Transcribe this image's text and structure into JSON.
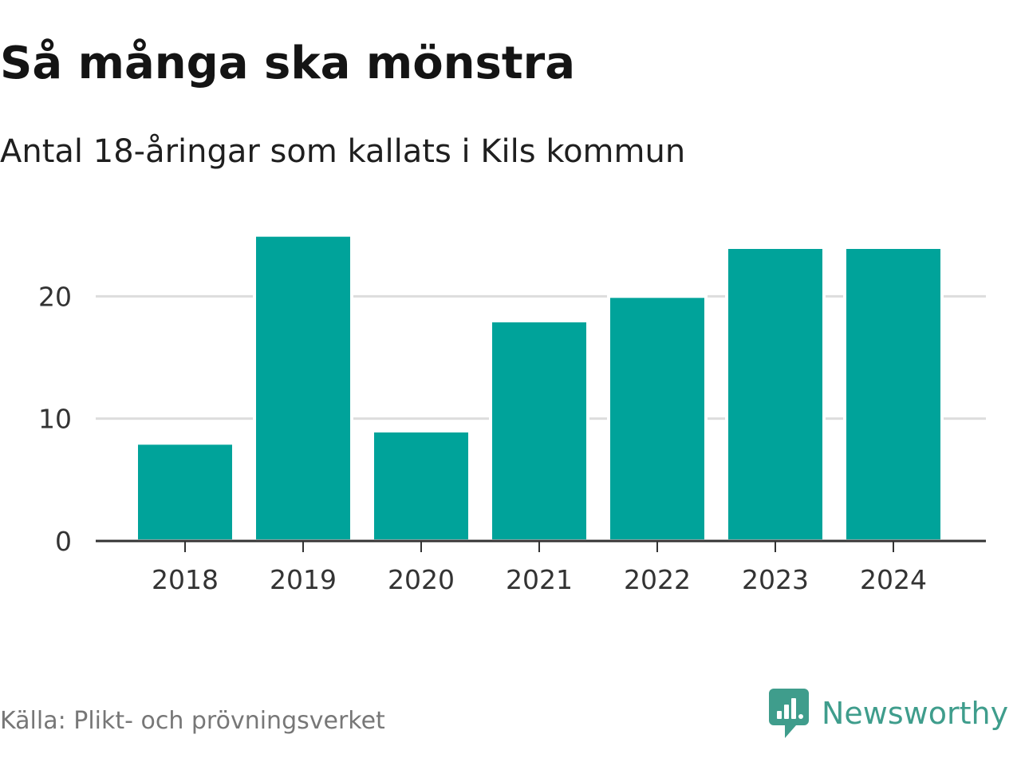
{
  "header": {
    "title": "Så många ska mönstra",
    "subtitle": "Antal 18-åringar som kallats i Kils kommun"
  },
  "footer": {
    "source": "Källa: Plikt- och prövningsverket",
    "brand": "Newsworthy"
  },
  "colors": {
    "bar": "#00a39a",
    "grid": "#dddddd",
    "axis": "#333333",
    "brand": "#3f9d8c"
  },
  "chart_data": {
    "type": "bar",
    "categories": [
      "2018",
      "2019",
      "2020",
      "2021",
      "2022",
      "2023",
      "2024"
    ],
    "values": [
      8,
      25,
      9,
      18,
      20,
      24,
      24
    ],
    "ylim": [
      0,
      27
    ],
    "yticks": [
      0,
      10,
      20
    ],
    "xlabel": "",
    "ylabel": "",
    "grid": true
  }
}
